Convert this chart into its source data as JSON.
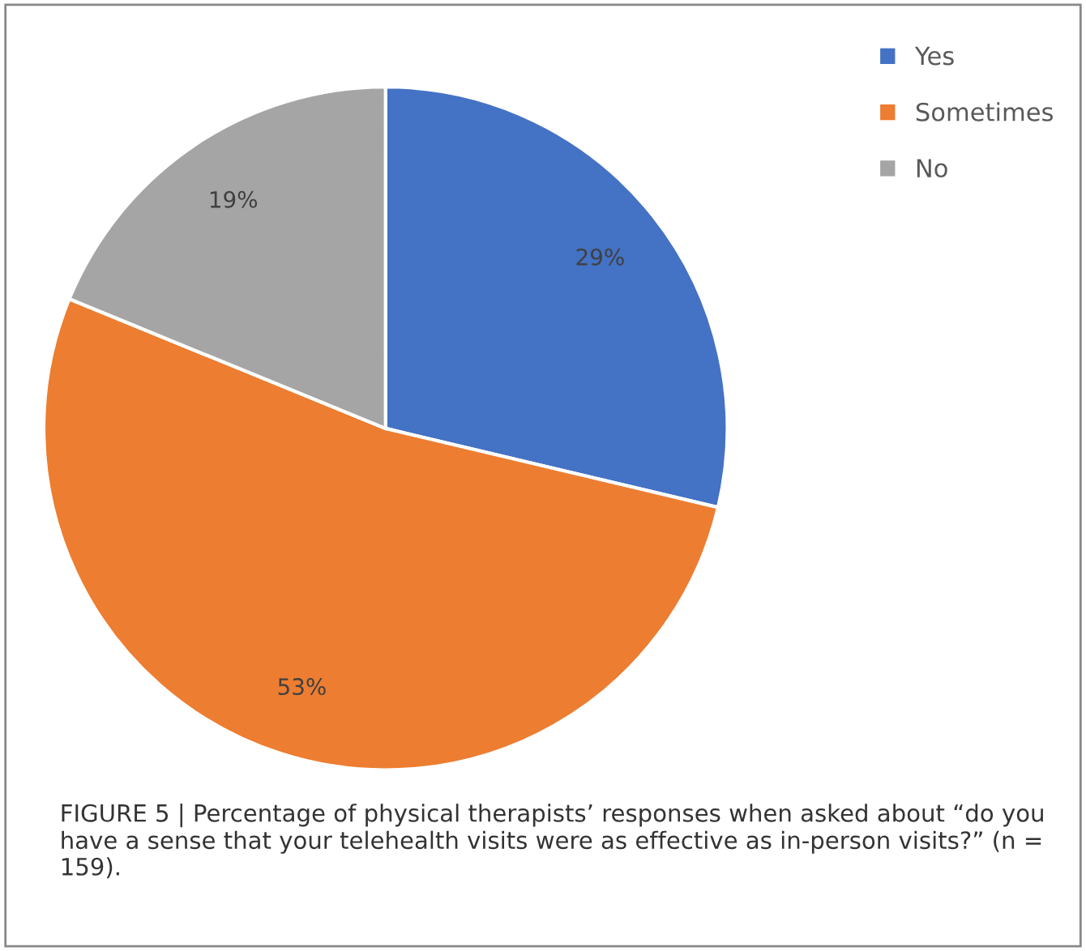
{
  "chart_data": {
    "type": "pie",
    "categories": [
      "Yes",
      "Sometimes",
      "No"
    ],
    "values": [
      29,
      53,
      19
    ],
    "colors": [
      "#4472c4",
      "#ed7d31",
      "#a5a5a5"
    ],
    "data_labels": true,
    "value_labels": [
      "29%",
      "53%",
      "19%"
    ],
    "legend": "top right",
    "annotations": [
      "FIGURE 5 | Percentage of physical therapists’ responses when asked about “do you have a sense that your telehealth visits were as effective as in-person visits?” (n = 159)."
    ]
  }
}
